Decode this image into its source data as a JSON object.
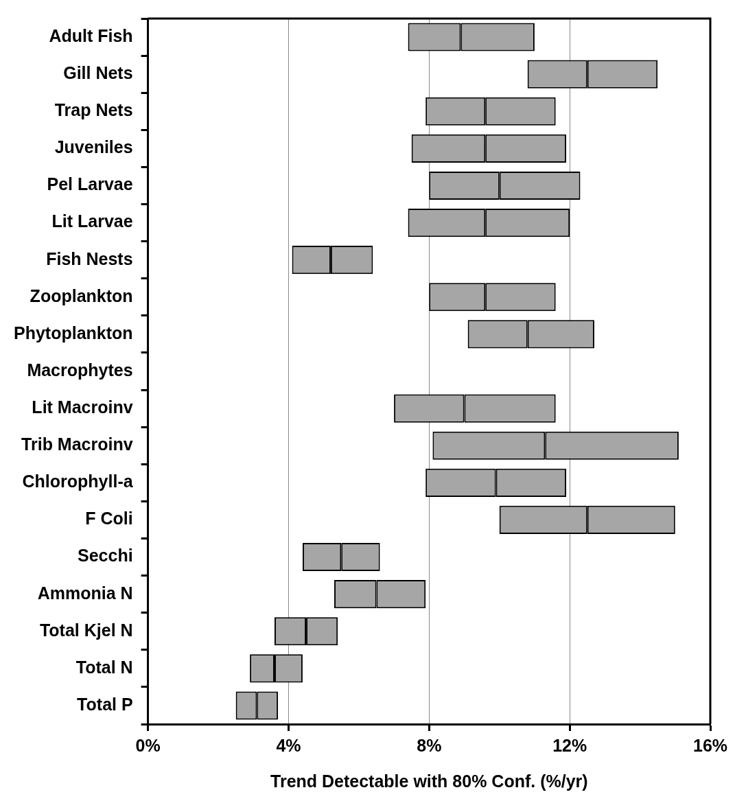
{
  "chart_data": {
    "type": "bar",
    "orientation": "horizontal",
    "categories": [
      "Adult Fish",
      "Gill Nets",
      "Trap Nets",
      "Juveniles",
      "Pel Larvae",
      "Lit Larvae",
      "Fish Nests",
      "Zooplankton",
      "Phytoplankton",
      "Macrophytes",
      "Lit Macroinv",
      "Trib Macroinv",
      "Chlorophyll-a",
      "F Coli",
      "Secchi",
      "Ammonia N",
      "Total Kjel N",
      "Total N",
      "Total P"
    ],
    "series": [
      {
        "color": "#a6a6a6",
        "base": [
          7.4,
          10.8,
          7.9,
          7.5,
          8.0,
          7.4,
          4.1,
          8.0,
          9.1,
          null,
          7.0,
          8.1,
          7.9,
          10.0,
          4.4,
          5.3,
          3.6,
          2.9,
          2.5
        ],
        "values": [
          1.5,
          1.7,
          1.7,
          2.1,
          2.0,
          2.2,
          1.1,
          1.6,
          1.7,
          null,
          2.0,
          3.2,
          2.0,
          2.5,
          1.1,
          1.2,
          0.9,
          0.7,
          0.6
        ]
      },
      {
        "color": "#a6a6a6",
        "base": [
          8.9,
          12.5,
          9.6,
          9.6,
          10.0,
          9.6,
          5.2,
          9.6,
          10.8,
          null,
          9.0,
          11.3,
          9.9,
          12.5,
          5.5,
          6.5,
          4.5,
          3.6,
          3.1
        ],
        "values": [
          2.1,
          2.0,
          2.0,
          2.3,
          2.3,
          2.4,
          1.2,
          2.0,
          1.9,
          null,
          2.6,
          3.8,
          2.0,
          2.5,
          1.1,
          1.4,
          0.9,
          0.8,
          0.6
        ]
      }
    ],
    "xlabel": "Trend Detectable with 80% Conf. (%/yr)",
    "xlim": [
      0,
      16
    ],
    "xticks": [
      {
        "value": 0,
        "label": "0%"
      },
      {
        "value": 4,
        "label": "4%"
      },
      {
        "value": 8,
        "label": "8%"
      },
      {
        "value": 12,
        "label": "12%"
      },
      {
        "value": 16,
        "label": "16%"
      }
    ],
    "grid": "x"
  }
}
